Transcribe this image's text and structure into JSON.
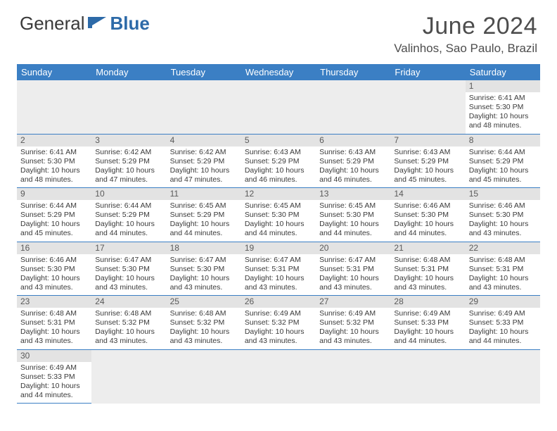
{
  "logo": {
    "text1": "General",
    "text2": "Blue"
  },
  "title": "June 2024",
  "location": "Valinhos, Sao Paulo, Brazil",
  "colors": {
    "header_bg": "#3b7fc4",
    "header_text": "#ffffff",
    "daybar_bg": "#e3e3e3",
    "row_divider": "#3b7fc4",
    "empty_bg": "#ededed",
    "body_text": "#3a3a3a",
    "title_text": "#4d4d4d"
  },
  "typography": {
    "title_fontsize": 34,
    "location_fontsize": 17,
    "header_fontsize": 13,
    "cell_fontsize": 10.5,
    "daynum_fontsize": 12
  },
  "weekdays": [
    "Sunday",
    "Monday",
    "Tuesday",
    "Wednesday",
    "Thursday",
    "Friday",
    "Saturday"
  ],
  "first_weekday_index": 6,
  "days": [
    {
      "n": 1,
      "sunrise": "6:41 AM",
      "sunset": "5:30 PM",
      "daylight": "10 hours and 48 minutes."
    },
    {
      "n": 2,
      "sunrise": "6:41 AM",
      "sunset": "5:30 PM",
      "daylight": "10 hours and 48 minutes."
    },
    {
      "n": 3,
      "sunrise": "6:42 AM",
      "sunset": "5:29 PM",
      "daylight": "10 hours and 47 minutes."
    },
    {
      "n": 4,
      "sunrise": "6:42 AM",
      "sunset": "5:29 PM",
      "daylight": "10 hours and 47 minutes."
    },
    {
      "n": 5,
      "sunrise": "6:43 AM",
      "sunset": "5:29 PM",
      "daylight": "10 hours and 46 minutes."
    },
    {
      "n": 6,
      "sunrise": "6:43 AM",
      "sunset": "5:29 PM",
      "daylight": "10 hours and 46 minutes."
    },
    {
      "n": 7,
      "sunrise": "6:43 AM",
      "sunset": "5:29 PM",
      "daylight": "10 hours and 45 minutes."
    },
    {
      "n": 8,
      "sunrise": "6:44 AM",
      "sunset": "5:29 PM",
      "daylight": "10 hours and 45 minutes."
    },
    {
      "n": 9,
      "sunrise": "6:44 AM",
      "sunset": "5:29 PM",
      "daylight": "10 hours and 45 minutes."
    },
    {
      "n": 10,
      "sunrise": "6:44 AM",
      "sunset": "5:29 PM",
      "daylight": "10 hours and 44 minutes."
    },
    {
      "n": 11,
      "sunrise": "6:45 AM",
      "sunset": "5:29 PM",
      "daylight": "10 hours and 44 minutes."
    },
    {
      "n": 12,
      "sunrise": "6:45 AM",
      "sunset": "5:30 PM",
      "daylight": "10 hours and 44 minutes."
    },
    {
      "n": 13,
      "sunrise": "6:45 AM",
      "sunset": "5:30 PM",
      "daylight": "10 hours and 44 minutes."
    },
    {
      "n": 14,
      "sunrise": "6:46 AM",
      "sunset": "5:30 PM",
      "daylight": "10 hours and 44 minutes."
    },
    {
      "n": 15,
      "sunrise": "6:46 AM",
      "sunset": "5:30 PM",
      "daylight": "10 hours and 43 minutes."
    },
    {
      "n": 16,
      "sunrise": "6:46 AM",
      "sunset": "5:30 PM",
      "daylight": "10 hours and 43 minutes."
    },
    {
      "n": 17,
      "sunrise": "6:47 AM",
      "sunset": "5:30 PM",
      "daylight": "10 hours and 43 minutes."
    },
    {
      "n": 18,
      "sunrise": "6:47 AM",
      "sunset": "5:30 PM",
      "daylight": "10 hours and 43 minutes."
    },
    {
      "n": 19,
      "sunrise": "6:47 AM",
      "sunset": "5:31 PM",
      "daylight": "10 hours and 43 minutes."
    },
    {
      "n": 20,
      "sunrise": "6:47 AM",
      "sunset": "5:31 PM",
      "daylight": "10 hours and 43 minutes."
    },
    {
      "n": 21,
      "sunrise": "6:48 AM",
      "sunset": "5:31 PM",
      "daylight": "10 hours and 43 minutes."
    },
    {
      "n": 22,
      "sunrise": "6:48 AM",
      "sunset": "5:31 PM",
      "daylight": "10 hours and 43 minutes."
    },
    {
      "n": 23,
      "sunrise": "6:48 AM",
      "sunset": "5:31 PM",
      "daylight": "10 hours and 43 minutes."
    },
    {
      "n": 24,
      "sunrise": "6:48 AM",
      "sunset": "5:32 PM",
      "daylight": "10 hours and 43 minutes."
    },
    {
      "n": 25,
      "sunrise": "6:48 AM",
      "sunset": "5:32 PM",
      "daylight": "10 hours and 43 minutes."
    },
    {
      "n": 26,
      "sunrise": "6:49 AM",
      "sunset": "5:32 PM",
      "daylight": "10 hours and 43 minutes."
    },
    {
      "n": 27,
      "sunrise": "6:49 AM",
      "sunset": "5:32 PM",
      "daylight": "10 hours and 43 minutes."
    },
    {
      "n": 28,
      "sunrise": "6:49 AM",
      "sunset": "5:33 PM",
      "daylight": "10 hours and 44 minutes."
    },
    {
      "n": 29,
      "sunrise": "6:49 AM",
      "sunset": "5:33 PM",
      "daylight": "10 hours and 44 minutes."
    },
    {
      "n": 30,
      "sunrise": "6:49 AM",
      "sunset": "5:33 PM",
      "daylight": "10 hours and 44 minutes."
    }
  ],
  "labels": {
    "sunrise": "Sunrise:",
    "sunset": "Sunset:",
    "daylight": "Daylight:"
  }
}
